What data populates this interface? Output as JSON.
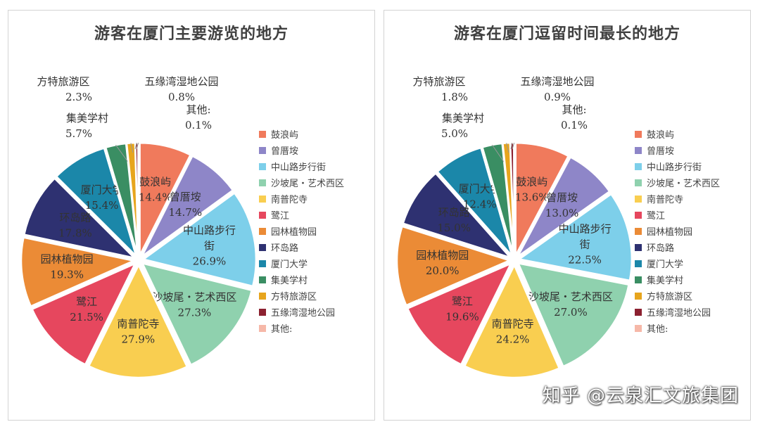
{
  "chart_data": [
    {
      "type": "pie",
      "title": "游客在厦门主要游览的地方",
      "categories": [
        "鼓浪屿",
        "曾厝垵",
        "中山路步行街",
        "沙坡尾・艺术西区",
        "南普陀寺",
        "鹭江",
        "园林植物园",
        "环岛路",
        "厦门大学",
        "集美学村",
        "方特旅游区",
        "五缘湾湿地公园",
        "其他:"
      ],
      "values": [
        14.4,
        14.7,
        26.9,
        27.3,
        27.9,
        21.5,
        19.3,
        17.8,
        15.4,
        5.7,
        2.3,
        0.8,
        0.1
      ],
      "value_labels": [
        "14.4%",
        "14.7%",
        "26.9%",
        "27.3%",
        "27.9%",
        "21.5%",
        "19.3%",
        "17.8%",
        "15.4%",
        "5.7%",
        "2.3%",
        "0.8%",
        "0.1%"
      ],
      "slice_labels": [
        "鼓浪屿",
        "曾厝垵",
        "中山路步行街",
        "沙坡尾・艺术西区",
        "南普陀寺",
        "鹭江",
        "园林植物园",
        "环岛路",
        "厦门大学",
        "集美学村",
        "方特旅游区",
        "五缘湾湿地公园",
        "其他:"
      ],
      "legend_position": "right"
    },
    {
      "type": "pie",
      "title": "游客在厦门逗留时间最长的地方",
      "categories": [
        "鼓浪屿",
        "曾厝垵",
        "中山路步行街",
        "沙坡尾・艺术西区",
        "南普陀寺",
        "鹭江",
        "园林植物园",
        "环岛路",
        "厦门大学",
        "集美学村",
        "方特旅游区",
        "五缘湾湿地公园",
        "其他:"
      ],
      "values": [
        13.6,
        13.0,
        22.5,
        27.0,
        24.2,
        19.6,
        20.0,
        15.0,
        12.4,
        5.0,
        1.8,
        0.9,
        0.1
      ],
      "value_labels": [
        "13.6%",
        "13.0%",
        "22.5%",
        "27.0%",
        "24.2%",
        "19.6%",
        "20.0%",
        "15.0%",
        "12.4%",
        "5.0%",
        "1.8%",
        "0.9%",
        "0.1%"
      ],
      "slice_labels": [
        "鼓浪屿",
        "曾厝垵",
        "中山路步行街",
        "沙坡尾・艺术西区",
        "南普陀寺",
        "鹭江",
        "园林植物园",
        "环岛路",
        "厦门大学",
        "集美学村",
        "方特旅游区",
        "五缘湾湿地公园",
        "其他:"
      ],
      "legend_position": "right"
    }
  ],
  "colors": [
    "#F07A5C",
    "#8E86C8",
    "#7DCFEA",
    "#8FD1AE",
    "#F9CE50",
    "#E6475E",
    "#EB8B36",
    "#2E3171",
    "#1B87A9",
    "#3A8E63",
    "#E7A51D",
    "#8C2130",
    "#F6B8A8"
  ],
  "watermark": "知乎 @云泉汇文旅集团"
}
